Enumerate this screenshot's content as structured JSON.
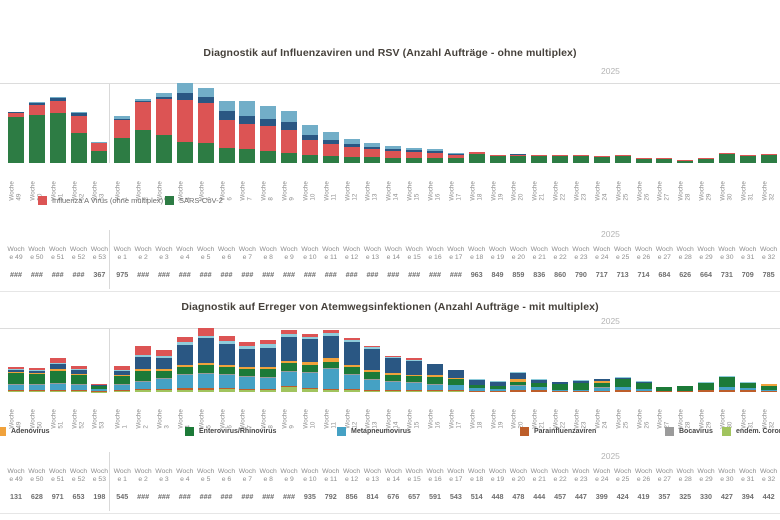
{
  "axis_word": "Woche",
  "table_header_line1": "Woch",
  "table_header_line2_prefix": "e",
  "chart_data": [
    {
      "type": "bar",
      "title": "Diagnostik auf Influenzaviren und RSV (Anzahl Aufträge - ohne multiplex)",
      "year_label": "2025",
      "table_year_label": "2025",
      "value_units": "relative height estimates (no y-axis labels visible in screenshot)",
      "categories": [
        "49",
        "50",
        "51",
        "52",
        "53",
        "1",
        "2",
        "3",
        "4",
        "5",
        "6",
        "7",
        "8",
        "9",
        "10",
        "11",
        "12",
        "13",
        "14",
        "15",
        "16",
        "17",
        "18",
        "19",
        "20",
        "21",
        "22",
        "23",
        "24",
        "25",
        "26",
        "27",
        "28",
        "29",
        "30",
        "31",
        "32"
      ],
      "legend": [
        {
          "label": "Influenza A Virus (ohne multiplex)",
          "color": "#dc5454"
        },
        {
          "label": "SARS-CoV-2",
          "color": "#2d7c44"
        }
      ],
      "series": [
        {
          "name": "SARS-CoV-2",
          "color": "#2d7c44",
          "values": [
            46,
            48,
            50,
            30,
            12,
            25,
            33,
            28,
            21,
            20,
            15,
            14,
            12,
            10,
            8,
            7,
            6,
            6,
            5,
            5,
            5,
            5,
            9,
            7,
            7,
            7,
            7,
            7,
            6,
            7,
            4,
            4,
            2,
            4,
            9,
            7,
            8
          ]
        },
        {
          "name": "Influenza A Virus (ohne multiplex)",
          "color": "#dc5454",
          "values": [
            4,
            10,
            12,
            17,
            8,
            18,
            28,
            36,
            42,
            40,
            28,
            25,
            25,
            23,
            15,
            12,
            10,
            8,
            7,
            6,
            5,
            3,
            2,
            1,
            1,
            1,
            1,
            1,
            1,
            1,
            1,
            1,
            1,
            1,
            1,
            1,
            1
          ]
        },
        {
          "name": "unbeschriftet-dunkelblau",
          "color": "#2a5783",
          "values": [
            1,
            2,
            3,
            3,
            0,
            1,
            1,
            2,
            7,
            6,
            9,
            8,
            7,
            8,
            5,
            4,
            3,
            2,
            2,
            2,
            2,
            1,
            0,
            0,
            1,
            0,
            0,
            0,
            0,
            0,
            0,
            0,
            0,
            0,
            0,
            0,
            0
          ]
        },
        {
          "name": "unbeschriftet-hellblau",
          "color": "#72aec8",
          "values": [
            0,
            1,
            1,
            1,
            1,
            3,
            2,
            4,
            10,
            9,
            10,
            15,
            13,
            11,
            10,
            8,
            5,
            4,
            3,
            2,
            2,
            1,
            0,
            0,
            0,
            0,
            0,
            0,
            0,
            0,
            0,
            0,
            0,
            0,
            0,
            0,
            0
          ]
        }
      ],
      "table_values": [
        "###",
        "###",
        "###",
        "###",
        "367",
        "975",
        "###",
        "###",
        "###",
        "###",
        "###",
        "###",
        "###",
        "###",
        "###",
        "###",
        "###",
        "###",
        "###",
        "###",
        "###",
        "###",
        "963",
        "849",
        "859",
        "836",
        "860",
        "790",
        "717",
        "713",
        "714",
        "684",
        "626",
        "664",
        "731",
        "709",
        "785"
      ]
    },
    {
      "type": "bar",
      "title": "Diagnostik auf Erreger von Atemwegsinfektionen (Anzahl Aufträge - mit multiplex)",
      "year_label": "2025",
      "table_year_label": "2025",
      "value_units": "relative height estimates (no y-axis labels visible in screenshot)",
      "categories": [
        "49",
        "50",
        "51",
        "52",
        "53",
        "1",
        "2",
        "3",
        "4",
        "5",
        "6",
        "7",
        "8",
        "9",
        "10",
        "11",
        "12",
        "13",
        "14",
        "15",
        "16",
        "17",
        "18",
        "19",
        "20",
        "21",
        "22",
        "23",
        "24",
        "25",
        "26",
        "27",
        "28",
        "29",
        "30",
        "31",
        "32"
      ],
      "legend": [
        {
          "label": "Adenovirus",
          "color": "#f0a23c"
        },
        {
          "label": "Enterovirus/Rhinovirus",
          "color": "#1c7a38"
        },
        {
          "label": "Metapneumovirus",
          "color": "#45a1c4"
        },
        {
          "label": "Parainfluenzaviren",
          "color": "#bd5e2a"
        },
        {
          "label": "Bocavirus",
          "color": "#9b9b9b"
        },
        {
          "label": "endem. Coronaviren",
          "color": "#a1c45e"
        }
      ],
      "series": [
        {
          "name": "endem. Coronaviren",
          "color": "#a1c45e",
          "values": [
            1,
            1,
            1,
            1,
            0.5,
            1,
            2,
            2,
            2,
            2,
            3,
            2,
            2,
            5,
            3,
            2,
            2,
            1,
            1,
            1,
            1,
            1,
            0,
            0,
            0,
            0,
            0,
            0,
            0,
            0,
            0,
            0,
            0,
            0,
            0,
            0,
            0
          ]
        },
        {
          "name": "Parainfluenzaviren",
          "color": "#bd5e2a",
          "values": [
            1,
            1,
            1,
            1,
            0.5,
            1,
            1,
            1,
            2,
            2,
            1,
            1,
            1,
            1,
            1,
            1,
            1,
            1,
            1,
            1,
            1,
            1,
            1,
            1,
            2,
            2,
            1,
            1,
            1,
            2,
            1,
            1,
            1,
            2,
            2,
            2,
            1
          ]
        },
        {
          "name": "Metapneumovirus",
          "color": "#45a1c4",
          "values": [
            5,
            5,
            6,
            5,
            2,
            5,
            7,
            10,
            13,
            14,
            13,
            12,
            11,
            14,
            15,
            20,
            14,
            10,
            8,
            7,
            5,
            5,
            3,
            2,
            4,
            3,
            1,
            1,
            3,
            3,
            2,
            0,
            0,
            0,
            3,
            2,
            1
          ]
        },
        {
          "name": "Bocavirus",
          "color": "#9b9b9b",
          "values": [
            1,
            1,
            1,
            1,
            0,
            1,
            1,
            1,
            1,
            1,
            1,
            1,
            1,
            1,
            1,
            1,
            1,
            1,
            1,
            1,
            1,
            0,
            0,
            0,
            1,
            0,
            0,
            0,
            1,
            0,
            0,
            0,
            0,
            0,
            0,
            0,
            0
          ]
        },
        {
          "name": "Enterovirus/Rhinovirus",
          "color": "#1c7a38",
          "values": [
            11,
            10,
            12,
            9,
            3,
            8,
            10,
            7,
            7,
            8,
            7,
            7,
            8,
            8,
            7,
            6,
            7,
            7,
            6,
            6,
            7,
            6,
            3,
            3,
            3,
            4,
            6,
            7,
            4,
            8,
            6,
            4,
            5,
            7,
            10,
            5,
            4
          ]
        },
        {
          "name": "Adenovirus",
          "color": "#f0a23c",
          "values": [
            1,
            1,
            2,
            1,
            0.5,
            1,
            2,
            2,
            2,
            2,
            2,
            2,
            2,
            2,
            3,
            4,
            2,
            2,
            2,
            1,
            2,
            1,
            0,
            0,
            3,
            0,
            0,
            0,
            2,
            0,
            0,
            0,
            0,
            0,
            0,
            0,
            2
          ]
        },
        {
          "name": "unbeschriftet-dunkelblau",
          "color": "#2a5783",
          "values": [
            2,
            2,
            5,
            4,
            1,
            4,
            12,
            11,
            20,
            25,
            21,
            18,
            19,
            24,
            23,
            22,
            23,
            21,
            15,
            14,
            11,
            8,
            5,
            4,
            6,
            3,
            2,
            2,
            2,
            1,
            1,
            0,
            0,
            0,
            0,
            0,
            0
          ]
        },
        {
          "name": "unbeschriftet-hellblau",
          "color": "#8fccdb",
          "values": [
            1,
            1,
            1,
            1,
            0,
            1,
            2,
            2,
            3,
            2,
            3,
            3,
            4,
            3,
            2,
            3,
            2,
            2,
            1,
            1,
            0,
            0,
            1,
            1,
            1,
            1,
            0,
            1,
            0,
            1,
            1,
            0,
            0,
            1,
            1,
            1,
            0
          ]
        },
        {
          "name": "unbeschriftet-rot",
          "color": "#dc5454",
          "values": [
            2,
            2,
            5,
            3,
            1,
            4,
            9,
            6,
            5,
            8,
            5,
            4,
            4,
            4,
            3,
            3,
            2,
            1,
            1,
            2,
            0,
            0,
            0,
            0,
            0,
            0,
            0,
            0,
            0,
            0,
            0,
            0,
            0,
            0,
            0,
            0,
            0
          ]
        }
      ],
      "table_values": [
        "131",
        "628",
        "971",
        "653",
        "198",
        "545",
        "###",
        "###",
        "###",
        "###",
        "###",
        "###",
        "###",
        "###",
        "935",
        "792",
        "856",
        "814",
        "676",
        "657",
        "591",
        "543",
        "514",
        "448",
        "478",
        "444",
        "457",
        "447",
        "399",
        "424",
        "419",
        "357",
        "325",
        "330",
        "427",
        "394",
        "442"
      ]
    }
  ]
}
